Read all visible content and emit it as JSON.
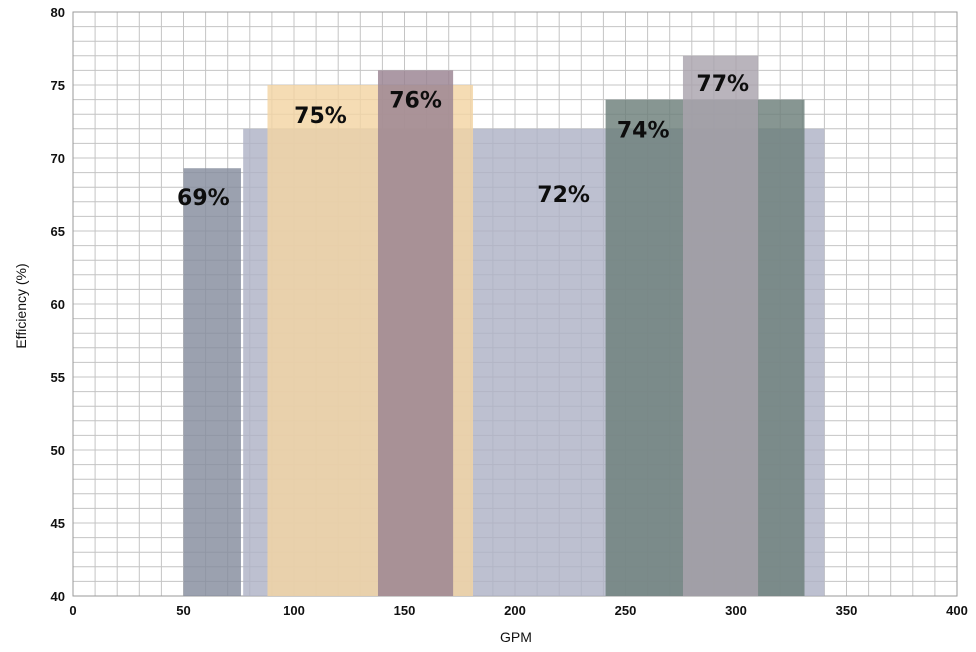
{
  "chart_data": {
    "type": "bar",
    "title": "",
    "xlabel": "GPM",
    "ylabel": "Efficiency (%)",
    "xlim": [
      0,
      400
    ],
    "ylim": [
      40,
      80
    ],
    "x_ticks": [
      0,
      50,
      100,
      150,
      200,
      250,
      300,
      350,
      400
    ],
    "y_ticks": [
      40,
      45,
      50,
      55,
      60,
      65,
      70,
      75,
      80
    ],
    "grid": true,
    "bars": [
      {
        "x_start": 77,
        "x_end": 340,
        "value": 72,
        "label": "72%",
        "color": "#aeb2c6"
      },
      {
        "x_start": 50,
        "x_end": 76,
        "value": 69.3,
        "label": "69%",
        "color": "#858c9d"
      },
      {
        "x_start": 88,
        "x_end": 181,
        "value": 75,
        "label": "75%",
        "color": "#f3d4a4"
      },
      {
        "x_start": 138,
        "x_end": 172,
        "value": 76,
        "label": "76%",
        "color": "#9a8391"
      },
      {
        "x_start": 241,
        "x_end": 331,
        "value": 74,
        "label": "74%",
        "color": "#6c7f7a"
      },
      {
        "x_start": 276,
        "x_end": 310,
        "value": 77,
        "label": "77%",
        "color": "#a9a3ad"
      }
    ]
  }
}
